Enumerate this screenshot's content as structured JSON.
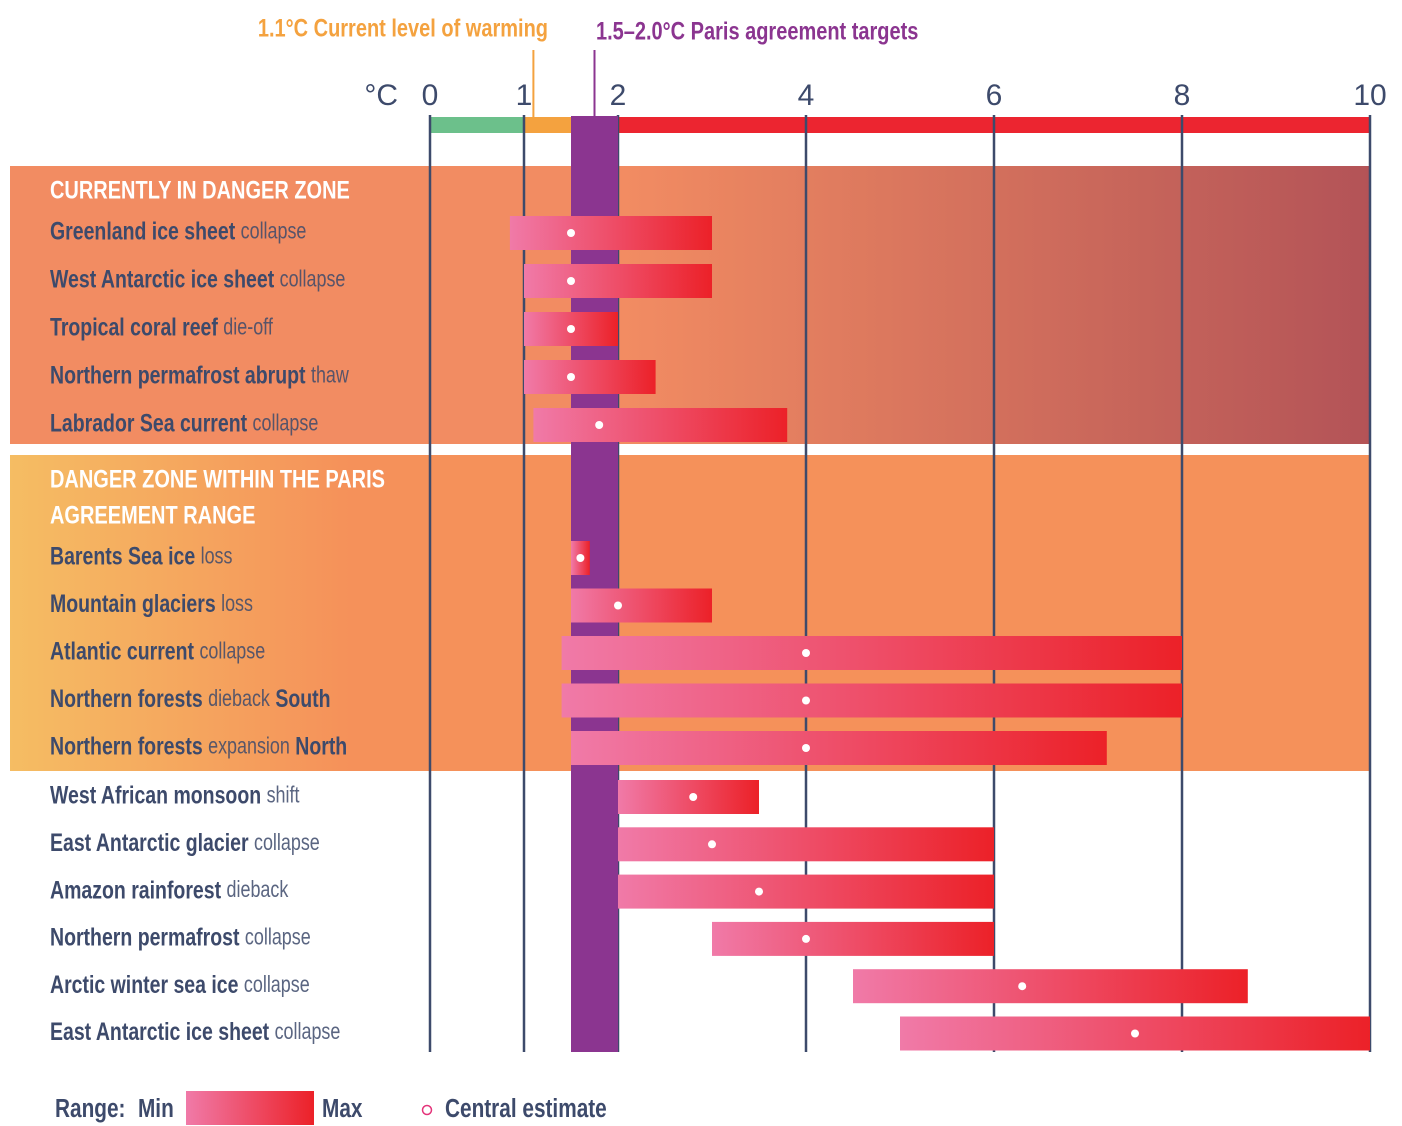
{
  "chart_data": {
    "type": "range",
    "x_unit": "°C",
    "xlim": [
      0,
      10
    ],
    "xticks": [
      0,
      1,
      2,
      4,
      6,
      8,
      10
    ],
    "scale_bands": [
      {
        "from": 0,
        "to": 1,
        "color": "#6cc08b"
      },
      {
        "from": 1,
        "to": 1.5,
        "color": "#f4a23f"
      },
      {
        "from": 1.5,
        "to": 2,
        "color": "#8b3590"
      },
      {
        "from": 2,
        "to": 10,
        "color": "#ec2530"
      }
    ],
    "annotations": [
      {
        "text": "1.1°C Current level of warming",
        "value": 1.1,
        "color": "#f4a23f"
      },
      {
        "text": "1.5–2.0°C Paris agreement targets",
        "from": 1.5,
        "to": 2.0,
        "color": "#8b3590"
      }
    ],
    "bar_colors": [
      "#f07aa8",
      "#ec2128"
    ],
    "groups": [
      {
        "title": [
          "CURRENTLY IN DANGER ZONE"
        ],
        "background": [
          "#f28c62",
          "#b35357"
        ],
        "items": [
          {
            "name": "Greenland ice sheet",
            "detail": "collapse",
            "min": 0.85,
            "central": 1.5,
            "max": 3.0
          },
          {
            "name": "West Antarctic ice sheet",
            "detail": "collapse",
            "min": 1.0,
            "central": 1.5,
            "max": 3.0
          },
          {
            "name": "Tropical coral reef",
            "detail": "die-off",
            "min": 1.0,
            "central": 1.5,
            "max": 2.0
          },
          {
            "name": "Northern permafrost abrupt",
            "detail": "thaw",
            "min": 1.0,
            "central": 1.5,
            "max": 2.4
          },
          {
            "name": "Labrador Sea current",
            "detail": "collapse",
            "min": 1.1,
            "central": 1.8,
            "max": 3.8
          }
        ]
      },
      {
        "title": [
          "DANGER ZONE WITHIN THE PARIS",
          "AGREEMENT RANGE"
        ],
        "background": [
          "#f5bd63",
          "#f5915a"
        ],
        "items": [
          {
            "name": "Barents Sea ice",
            "detail": "loss",
            "min": 1.5,
            "central": 1.6,
            "max": 1.7
          },
          {
            "name": "Mountain glaciers",
            "detail": "loss",
            "min": 1.5,
            "central": 2.0,
            "max": 3.0
          },
          {
            "name": "Atlantic current",
            "detail": "collapse",
            "min": 1.4,
            "central": 4.0,
            "max": 8.0
          },
          {
            "name": "Northern forests",
            "detail": "dieback",
            "suffix": "South",
            "min": 1.4,
            "central": 4.0,
            "max": 8.0
          },
          {
            "name": "Northern forests",
            "detail": "expansion",
            "suffix": "North",
            "min": 1.5,
            "central": 4.0,
            "max": 7.2
          }
        ]
      },
      {
        "items": [
          {
            "name": "West African monsoon",
            "detail": "shift",
            "min": 2.0,
            "central": 2.8,
            "max": 3.5
          },
          {
            "name": "East Antarctic glacier",
            "detail": "collapse",
            "min": 2.0,
            "central": 3.0,
            "max": 6.0
          },
          {
            "name": "Amazon rainforest",
            "detail": "dieback",
            "min": 2.0,
            "central": 3.5,
            "max": 6.0
          },
          {
            "name": "Northern permafrost",
            "detail": "collapse",
            "min": 3.0,
            "central": 4.0,
            "max": 6.0
          },
          {
            "name": "Arctic winter sea ice",
            "detail": "collapse",
            "min": 4.5,
            "central": 6.3,
            "max": 8.7
          },
          {
            "name": "East Antarctic ice sheet",
            "detail": "collapse",
            "min": 5.0,
            "central": 7.5,
            "max": 10.0
          }
        ]
      }
    ],
    "legend": {
      "label": "Range:",
      "min": "Min",
      "max": "Max",
      "central": "Central estimate"
    }
  }
}
